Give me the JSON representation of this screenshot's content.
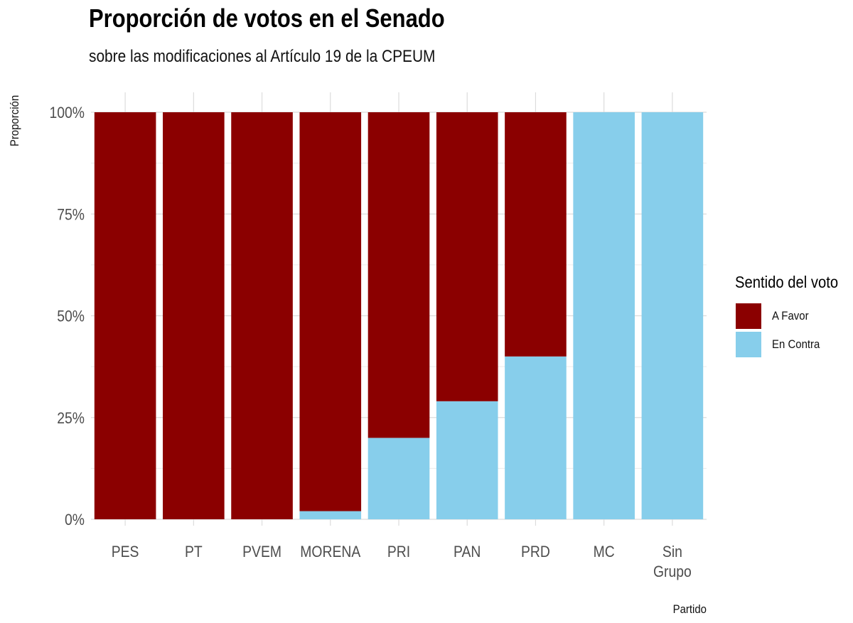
{
  "chart_data": {
    "type": "bar",
    "stacked": true,
    "title": "Proporción de votos en el Senado",
    "subtitle": "sobre las modificaciones al Artículo 19 de la CPEUM",
    "xlabel": "Partido",
    "ylabel": "Proporción",
    "ylim": [
      0,
      1
    ],
    "yticks": [
      0,
      0.25,
      0.5,
      0.75,
      1
    ],
    "ytick_labels": [
      "0%",
      "25%",
      "50%",
      "75%",
      "100%"
    ],
    "categories": [
      "PES",
      "PT",
      "PVEM",
      "MORENA",
      "PRI",
      "PAN",
      "PRD",
      "MC",
      "Sin Grupo"
    ],
    "series": [
      {
        "name": "En Contra",
        "color": "#87CEEB",
        "values": [
          0,
          0,
          0,
          0.02,
          0.2,
          0.29,
          0.4,
          1,
          1
        ]
      },
      {
        "name": "A Favor",
        "color": "#8B0000",
        "values": [
          1,
          1,
          1,
          0.98,
          0.8,
          0.71,
          0.6,
          0,
          0
        ]
      }
    ],
    "legend": {
      "title": "Sentido del voto",
      "position": "right",
      "order": [
        "A Favor",
        "En Contra"
      ]
    },
    "grid": true
  }
}
